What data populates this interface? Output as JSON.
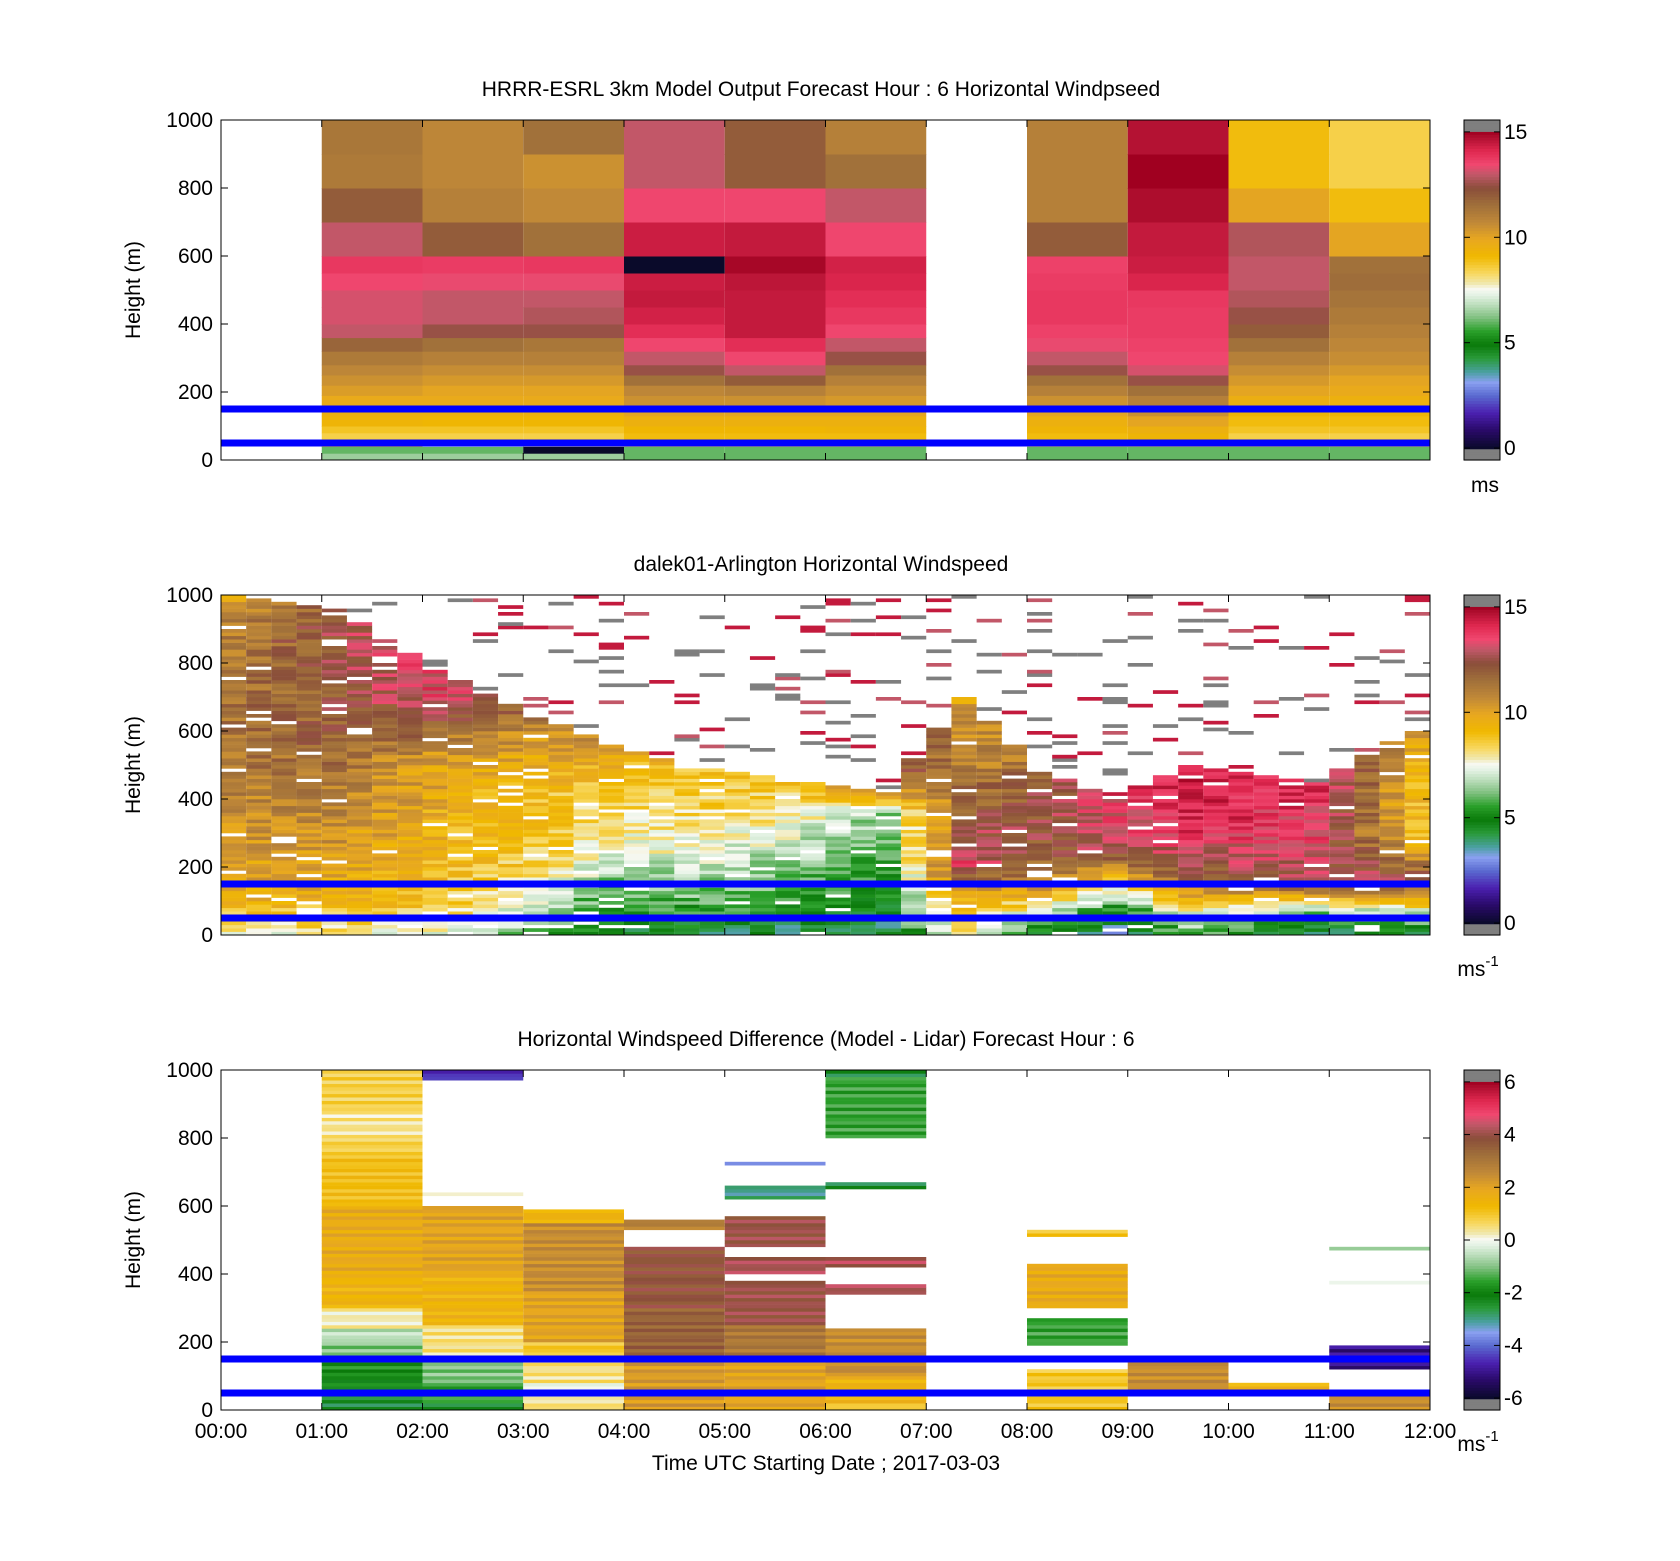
{
  "figure": {
    "xaxis": {
      "label": "Time UTC  Starting Date ; 2017-03-03",
      "range_hours": [
        0,
        12
      ],
      "tick_labels": [
        "00:00",
        "01:00",
        "02:00",
        "03:00",
        "04:00",
        "05:00",
        "06:00",
        "07:00",
        "08:00",
        "09:00",
        "10:00",
        "11:00",
        "12:00"
      ]
    },
    "blue_lines": {
      "heights_m": [
        150,
        50
      ],
      "color": "#0000ff"
    }
  },
  "chart_data": [
    {
      "type": "heatmap",
      "title": "HRRR-ESRL 3km Model Output   Forecast Hour : 6 Horizontal Windpseed",
      "ylabel": "Height (m)",
      "ylim": [
        0,
        1000
      ],
      "y_tick_labels": [
        "0",
        "200",
        "400",
        "600",
        "800",
        "1000"
      ],
      "colorbar": {
        "min": 0,
        "max": 15,
        "tick_labels": [
          "0",
          "5",
          "10",
          "15"
        ],
        "unit": "ms"
      },
      "z_units": "m/s",
      "hours": [
        0,
        1,
        2,
        3,
        4,
        5,
        6,
        7,
        8,
        9,
        10,
        11
      ],
      "levels_top_m": [
        20,
        40,
        60,
        80,
        100,
        130,
        160,
        190,
        220,
        250,
        280,
        320,
        360,
        400,
        450,
        500,
        550,
        600,
        700,
        800,
        900,
        1000
      ],
      "columns": [
        null,
        [
          6.5,
          6.0,
          8.8,
          8.5,
          8.8,
          9.3,
          9.5,
          9.8,
          10.2,
          10.5,
          10.8,
          11.2,
          11.8,
          13.0,
          13.2,
          13.2,
          13.5,
          13.8,
          13.0,
          12.0,
          11.2,
          11.3
        ],
        [
          6.5,
          6.0,
          7.5,
          8.5,
          8.8,
          9.2,
          9.5,
          9.8,
          10.0,
          10.3,
          10.6,
          11.0,
          11.5,
          12.5,
          13.0,
          13.0,
          13.4,
          13.7,
          12.0,
          11.0,
          10.8,
          10.8
        ],
        [
          6.5,
          0.0,
          8.0,
          8.5,
          8.8,
          9.2,
          9.5,
          9.8,
          10.0,
          10.3,
          10.6,
          11.0,
          11.3,
          12.5,
          12.8,
          13.0,
          13.4,
          13.8,
          11.5,
          10.7,
          10.5,
          11.5
        ],
        [
          6.0,
          6.0,
          8.5,
          9.0,
          9.2,
          9.5,
          10.0,
          10.5,
          10.8,
          11.5,
          12.5,
          13.0,
          13.5,
          14.0,
          14.3,
          14.5,
          14.4,
          0.0,
          14.4,
          13.5,
          13.0,
          13.0
        ],
        [
          6.0,
          6.0,
          8.5,
          9.0,
          9.2,
          9.5,
          10.0,
          10.5,
          11.0,
          12.0,
          13.0,
          13.5,
          14.0,
          14.5,
          14.5,
          14.5,
          14.6,
          14.9,
          14.5,
          13.5,
          12.0,
          12.0
        ],
        [
          6.0,
          6.0,
          8.5,
          9.0,
          9.3,
          9.5,
          10.0,
          10.3,
          10.6,
          11.0,
          11.5,
          12.5,
          13.0,
          13.5,
          13.8,
          14.0,
          14.2,
          14.3,
          13.5,
          13.0,
          11.5,
          11.0
        ],
        null,
        [
          6.0,
          6.0,
          8.5,
          9.0,
          9.3,
          9.5,
          10.0,
          10.5,
          11.0,
          11.5,
          12.5,
          13.0,
          13.4,
          13.6,
          13.8,
          13.8,
          13.7,
          13.6,
          12.0,
          11.0,
          11.0,
          11.0
        ],
        [
          6.0,
          6.0,
          8.5,
          9.3,
          9.5,
          10.0,
          10.5,
          11.0,
          11.5,
          12.5,
          13.2,
          13.5,
          13.6,
          13.7,
          13.7,
          13.8,
          14.2,
          14.4,
          14.5,
          14.8,
          15.0,
          14.7
        ],
        [
          6.0,
          6.0,
          8.5,
          8.5,
          8.8,
          9.0,
          9.3,
          9.6,
          10.0,
          10.3,
          10.6,
          11.0,
          11.5,
          12.0,
          12.5,
          12.8,
          13.0,
          13.0,
          12.8,
          10.0,
          9.0,
          9.0
        ],
        [
          6.0,
          6.0,
          8.5,
          8.5,
          8.8,
          9.0,
          9.3,
          9.5,
          9.8,
          10.0,
          10.3,
          10.6,
          10.8,
          11.0,
          11.2,
          11.4,
          11.6,
          11.5,
          10.0,
          9.0,
          8.5,
          8.5
        ]
      ]
    },
    {
      "type": "heatmap",
      "title": "dalek01-Arlington  Horizontal Windspeed",
      "ylabel": "Height (m)",
      "ylim": [
        0,
        1000
      ],
      "y_tick_labels": [
        "0",
        "200",
        "400",
        "600",
        "800",
        "1000"
      ],
      "colorbar": {
        "min": 0,
        "max": 15,
        "tick_labels": [
          "0",
          "5",
          "10",
          "15"
        ],
        "unit": "ms",
        "unit_sup": "-1"
      },
      "z_units": "m/s",
      "time_step_hours": 0.25,
      "bin_m": 10,
      "description_profile_keypoints": [
        {
          "t": 0.0,
          "top_m": 1000,
          "points": [
            [
              0,
              7.5
            ],
            [
              100,
              9.5
            ],
            [
              300,
              10.5
            ],
            [
              600,
              11.5
            ],
            [
              900,
              11.0
            ],
            [
              1000,
              10.0
            ]
          ]
        },
        {
          "t": 1.0,
          "top_m": 960,
          "points": [
            [
              0,
              8.0
            ],
            [
              100,
              9.5
            ],
            [
              300,
              10.5
            ],
            [
              600,
              12.0
            ],
            [
              900,
              12.5
            ],
            [
              1000,
              12.0
            ]
          ]
        },
        {
          "t": 2.0,
          "top_m": 780,
          "points": [
            [
              0,
              7.5
            ],
            [
              100,
              9.0
            ],
            [
              300,
              9.5
            ],
            [
              500,
              10.0
            ],
            [
              700,
              13.5
            ],
            [
              800,
              13.5
            ]
          ]
        },
        {
          "t": 3.0,
          "top_m": 640,
          "points": [
            [
              0,
              6.0
            ],
            [
              80,
              7.0
            ],
            [
              200,
              8.5
            ],
            [
              400,
              9.0
            ],
            [
              600,
              10.5
            ],
            [
              700,
              12.5
            ]
          ]
        },
        {
          "t": 3.75,
          "top_m": 560,
          "points": [
            [
              0,
              4.5
            ],
            [
              100,
              5.5
            ],
            [
              250,
              7.5
            ],
            [
              400,
              8.5
            ],
            [
              550,
              10.0
            ],
            [
              600,
              11.0
            ]
          ]
        },
        {
          "t": 4.5,
          "top_m": 500,
          "points": [
            [
              0,
              4.5
            ],
            [
              100,
              6.0
            ],
            [
              250,
              7.5
            ],
            [
              400,
              8.5
            ],
            [
              500,
              9.0
            ],
            [
              600,
              12.0
            ]
          ]
        },
        {
          "t": 5.5,
          "top_m": 450,
          "points": [
            [
              0,
              4.0
            ],
            [
              100,
              5.5
            ],
            [
              250,
              7.0
            ],
            [
              400,
              8.5
            ],
            [
              500,
              9.5
            ],
            [
              600,
              12.0
            ]
          ]
        },
        {
          "t": 6.5,
          "top_m": 420,
          "points": [
            [
              0,
              4.0
            ],
            [
              100,
              5.0
            ],
            [
              200,
              5.5
            ],
            [
              350,
              6.5
            ],
            [
              450,
              12.0
            ],
            [
              600,
              13.5
            ]
          ]
        },
        {
          "t": 7.25,
          "top_m": 700,
          "points": [
            [
              0,
              8.5
            ],
            [
              100,
              9.5
            ],
            [
              200,
              13.5
            ],
            [
              350,
              12.0
            ],
            [
              500,
              11.0
            ],
            [
              700,
              10.0
            ]
          ]
        },
        {
          "t": 8.0,
          "top_m": 480,
          "points": [
            [
              0,
              4.5
            ],
            [
              60,
              7.0
            ],
            [
              150,
              11.0
            ],
            [
              300,
              12.5
            ],
            [
              450,
              12.0
            ],
            [
              500,
              11.0
            ]
          ]
        },
        {
          "t": 8.75,
          "top_m": 400,
          "points": [
            [
              0,
              3.5
            ],
            [
              60,
              4.5
            ],
            [
              150,
              9.0
            ],
            [
              250,
              13.0
            ],
            [
              400,
              13.5
            ],
            [
              500,
              14.0
            ]
          ]
        },
        {
          "t": 9.5,
          "top_m": 500,
          "points": [
            [
              0,
              6.0
            ],
            [
              60,
              7.5
            ],
            [
              150,
              11.5
            ],
            [
              300,
              14.0
            ],
            [
              500,
              14.5
            ],
            [
              600,
              13.5
            ]
          ]
        },
        {
          "t": 10.75,
          "top_m": 450,
          "points": [
            [
              0,
              4.0
            ],
            [
              60,
              6.0
            ],
            [
              150,
              13.0
            ],
            [
              300,
              13.5
            ],
            [
              450,
              14.0
            ],
            [
              600,
              14.5
            ]
          ]
        },
        {
          "t": 11.75,
          "top_m": 600,
          "points": [
            [
              0,
              4.5
            ],
            [
              60,
              7.0
            ],
            [
              150,
              12.5
            ],
            [
              300,
              9.0
            ],
            [
              500,
              9.5
            ],
            [
              600,
              10.5
            ]
          ]
        }
      ]
    },
    {
      "type": "heatmap",
      "title": "Horizontal Windspeed Difference (Model - Lidar) Forecast Hour : 6",
      "xlabel": "Time UTC  Starting Date ; 2017-03-03",
      "ylabel": "Height (m)",
      "ylim": [
        0,
        1000
      ],
      "y_tick_labels": [
        "0",
        "200",
        "400",
        "600",
        "800",
        "1000"
      ],
      "colorbar": {
        "min": -6,
        "max": 6,
        "tick_labels": [
          "-6",
          "-4",
          "-2",
          "0",
          "2",
          "4",
          "6"
        ],
        "unit": "ms",
        "unit_sup": "-1"
      },
      "z_units": "m/s",
      "hour_columns": [
        {
          "hour": 1,
          "segments": [
            [
              0,
              20,
              -2.5
            ],
            [
              20,
              60,
              -2.5
            ],
            [
              60,
              100,
              -2.0
            ],
            [
              100,
              150,
              -1.8
            ],
            [
              150,
              200,
              -1.0
            ],
            [
              200,
              240,
              -0.5
            ],
            [
              240,
              300,
              0.2
            ],
            [
              300,
              400,
              1.5
            ],
            [
              400,
              600,
              1.8
            ],
            [
              600,
              750,
              1.2
            ],
            [
              750,
              800,
              0.8
            ],
            [
              800,
              880,
              0.4
            ],
            [
              880,
              1000,
              0.8
            ]
          ]
        },
        {
          "hour": 2,
          "segments": [
            [
              0,
              20,
              -2.5
            ],
            [
              20,
              80,
              -1.5
            ],
            [
              80,
              150,
              -1.0
            ],
            [
              150,
              250,
              0.5
            ],
            [
              250,
              400,
              1.5
            ],
            [
              400,
              600,
              2.0
            ],
            [
              630,
              640,
              0.0
            ],
            [
              970,
              1000,
              -4.5
            ]
          ]
        },
        {
          "hour": 3,
          "segments": [
            [
              0,
              30,
              0.5
            ],
            [
              30,
              80,
              0.0
            ],
            [
              80,
              150,
              0.5
            ],
            [
              150,
              200,
              1.0
            ],
            [
              200,
              350,
              2.0
            ],
            [
              350,
              550,
              2.5
            ],
            [
              550,
              590,
              1.5
            ]
          ]
        },
        {
          "hour": 4,
          "segments": [
            [
              0,
              150,
              2.2
            ],
            [
              150,
              300,
              3.5
            ],
            [
              300,
              400,
              3.8
            ],
            [
              400,
              480,
              3.8
            ],
            [
              530,
              560,
              2.8
            ]
          ]
        },
        {
          "hour": 5,
          "segments": [
            [
              0,
              150,
              2.0
            ],
            [
              150,
              250,
              3.0
            ],
            [
              250,
              380,
              4.0
            ],
            [
              400,
              450,
              4.2
            ],
            [
              480,
              570,
              4.0
            ],
            [
              620,
              660,
              -3.0
            ],
            [
              720,
              730,
              -4.0
            ]
          ]
        },
        {
          "hour": 6,
          "segments": [
            [
              0,
              20,
              1.0
            ],
            [
              20,
              100,
              1.5
            ],
            [
              100,
              240,
              2.5
            ],
            [
              340,
              370,
              4.2
            ],
            [
              420,
              450,
              4.2
            ],
            [
              650,
              670,
              -2.5
            ],
            [
              800,
              980,
              -1.5
            ],
            [
              980,
              1000,
              -2.5
            ]
          ]
        },
        {
          "hour": 8,
          "segments": [
            [
              0,
              120,
              1.0
            ],
            [
              190,
              270,
              -1.5
            ],
            [
              300,
              430,
              1.8
            ],
            [
              510,
              530,
              1.0
            ]
          ]
        },
        {
          "hour": 9,
          "segments": [
            [
              60,
              150,
              2.5
            ]
          ]
        },
        {
          "hour": 10,
          "segments": [
            [
              60,
              80,
              1.5
            ]
          ]
        },
        {
          "hour": 11,
          "segments": [
            [
              0,
              60,
              2.5
            ],
            [
              120,
              190,
              -5.0
            ],
            [
              370,
              380,
              0.0
            ],
            [
              470,
              480,
              -1.0
            ]
          ]
        }
      ]
    }
  ]
}
